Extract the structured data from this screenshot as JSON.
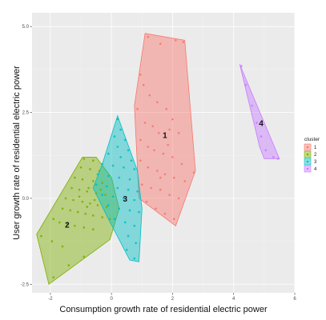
{
  "chart_data": {
    "type": "scatter",
    "xlabel": "Consumption growth rate of residential electric power",
    "ylabel": "User growth rate of residential electric power",
    "xlim": [
      -2.6,
      6.0
    ],
    "ylim": [
      -2.75,
      5.4
    ],
    "x_ticks": [
      -2,
      0,
      2,
      4,
      6
    ],
    "y_ticks": [
      -2.5,
      0.0,
      2.5,
      5.0
    ],
    "y_tick_labels": [
      "-2.5",
      "0.0",
      "2.5",
      "5.0"
    ],
    "grid": true,
    "legend": {
      "title": "cluster",
      "position": "right",
      "entries": [
        "1",
        "2",
        "3",
        "4"
      ]
    },
    "series": [
      {
        "name": "1",
        "color": "#F8766D",
        "label_point": [
          1.75,
          1.75
        ],
        "hull": [
          [
            1.1,
            4.8
          ],
          [
            2.4,
            4.6
          ],
          [
            2.75,
            0.8
          ],
          [
            2.1,
            -0.8
          ],
          [
            0.9,
            0.0
          ],
          [
            0.75,
            2.7
          ]
        ],
        "points": [
          [
            1.2,
            4.7
          ],
          [
            1.6,
            4.5
          ],
          [
            2.1,
            4.6
          ],
          [
            2.35,
            4.55
          ],
          [
            0.95,
            3.6
          ],
          [
            1.05,
            3.3
          ],
          [
            1.25,
            3.0
          ],
          [
            1.5,
            2.8
          ],
          [
            1.8,
            2.6
          ],
          [
            2.0,
            2.3
          ],
          [
            0.85,
            2.6
          ],
          [
            1.1,
            2.2
          ],
          [
            1.35,
            2.1
          ],
          [
            1.55,
            1.9
          ],
          [
            1.9,
            2.0
          ],
          [
            2.2,
            1.9
          ],
          [
            0.95,
            1.7
          ],
          [
            1.2,
            1.5
          ],
          [
            1.4,
            1.4
          ],
          [
            1.7,
            1.3
          ],
          [
            2.0,
            1.2
          ],
          [
            2.3,
            1.0
          ],
          [
            0.95,
            1.1
          ],
          [
            1.2,
            0.9
          ],
          [
            1.5,
            0.8
          ],
          [
            1.75,
            0.7
          ],
          [
            2.05,
            0.6
          ],
          [
            2.4,
            0.5
          ],
          [
            2.7,
            0.75
          ],
          [
            1.0,
            0.4
          ],
          [
            1.3,
            0.3
          ],
          [
            1.6,
            0.25
          ],
          [
            1.9,
            0.1
          ],
          [
            2.2,
            0.0
          ],
          [
            1.15,
            -0.1
          ],
          [
            1.45,
            -0.3
          ],
          [
            1.75,
            -0.45
          ],
          [
            2.05,
            -0.6
          ],
          [
            1.6,
            0.6
          ],
          [
            1.85,
            1.55
          ]
        ]
      },
      {
        "name": "2",
        "color": "#7CAE00",
        "label_point": [
          -1.45,
          -0.85
        ],
        "hull": [
          [
            -2.05,
            -2.5
          ],
          [
            -0.05,
            -1.2
          ],
          [
            0.25,
            -0.3
          ],
          [
            0.0,
            0.6
          ],
          [
            -0.5,
            1.2
          ],
          [
            -0.95,
            1.2
          ],
          [
            -2.45,
            -1.05
          ]
        ],
        "points": [
          [
            -0.9,
            1.15
          ],
          [
            -0.6,
            1.1
          ],
          [
            -1.0,
            0.9
          ],
          [
            -0.7,
            0.85
          ],
          [
            -0.4,
            0.8
          ],
          [
            -1.2,
            0.6
          ],
          [
            -0.95,
            0.55
          ],
          [
            -0.6,
            0.5
          ],
          [
            -0.3,
            0.45
          ],
          [
            -1.3,
            0.3
          ],
          [
            -1.05,
            0.25
          ],
          [
            -0.8,
            0.2
          ],
          [
            -0.5,
            0.15
          ],
          [
            -0.2,
            0.1
          ],
          [
            -1.5,
            0.0
          ],
          [
            -1.25,
            -0.05
          ],
          [
            -0.95,
            -0.1
          ],
          [
            -0.7,
            -0.15
          ],
          [
            -0.45,
            -0.2
          ],
          [
            -0.15,
            -0.25
          ],
          [
            -1.6,
            -0.3
          ],
          [
            -1.35,
            -0.35
          ],
          [
            -1.1,
            -0.4
          ],
          [
            -0.85,
            -0.45
          ],
          [
            -0.6,
            -0.5
          ],
          [
            -0.3,
            -0.55
          ],
          [
            -0.05,
            -0.6
          ],
          [
            -1.9,
            -0.6
          ],
          [
            -1.7,
            -0.7
          ],
          [
            -1.45,
            -0.75
          ],
          [
            -1.2,
            -0.8
          ],
          [
            -0.9,
            -0.85
          ],
          [
            -0.6,
            -0.9
          ],
          [
            -2.3,
            -1.1
          ],
          [
            -1.95,
            -1.25
          ],
          [
            -1.6,
            -1.4
          ],
          [
            -0.9,
            -1.7
          ],
          [
            -1.4,
            -1.95
          ],
          [
            -1.9,
            -2.3
          ],
          [
            -0.75,
            0.3
          ],
          [
            -0.55,
            -0.05
          ],
          [
            -0.35,
            0.25
          ],
          [
            -1.05,
            0.05
          ],
          [
            -0.8,
            -0.25
          ]
        ]
      },
      {
        "name": "3",
        "color": "#00BFC4",
        "label_point": [
          0.45,
          -0.1
        ],
        "hull": [
          [
            0.2,
            2.4
          ],
          [
            0.85,
            0.8
          ],
          [
            1.0,
            -0.3
          ],
          [
            0.9,
            -1.85
          ],
          [
            0.6,
            -1.8
          ],
          [
            -0.1,
            -0.6
          ],
          [
            -0.6,
            0.3
          ],
          [
            -0.3,
            1.0
          ]
        ],
        "points": [
          [
            0.2,
            2.3
          ],
          [
            0.3,
            2.0
          ],
          [
            0.1,
            1.8
          ],
          [
            0.45,
            1.7
          ],
          [
            0.2,
            1.5
          ],
          [
            0.55,
            1.4
          ],
          [
            -0.1,
            1.3
          ],
          [
            0.3,
            1.2
          ],
          [
            0.65,
            1.1
          ],
          [
            -0.3,
            1.0
          ],
          [
            0.05,
            0.95
          ],
          [
            0.4,
            0.9
          ],
          [
            0.75,
            0.85
          ],
          [
            -0.45,
            0.7
          ],
          [
            -0.1,
            0.65
          ],
          [
            0.25,
            0.6
          ],
          [
            0.6,
            0.55
          ],
          [
            -0.5,
            0.4
          ],
          [
            -0.15,
            0.35
          ],
          [
            0.2,
            0.3
          ],
          [
            0.55,
            0.25
          ],
          [
            0.85,
            0.2
          ],
          [
            -0.3,
            0.1
          ],
          [
            0.05,
            0.05
          ],
          [
            0.4,
            0.0
          ],
          [
            0.75,
            -0.05
          ],
          [
            -0.1,
            -0.2
          ],
          [
            0.25,
            -0.3
          ],
          [
            0.6,
            -0.35
          ],
          [
            0.9,
            -0.4
          ],
          [
            0.1,
            -0.6
          ],
          [
            0.45,
            -0.7
          ],
          [
            0.75,
            -0.8
          ],
          [
            0.55,
            -1.1
          ],
          [
            0.8,
            -1.3
          ],
          [
            0.75,
            -1.75
          ],
          [
            0.5,
            -1.5
          ]
        ]
      },
      {
        "name": "4",
        "color": "#C77CFF",
        "label_point": [
          4.9,
          2.1
        ],
        "hull": [
          [
            4.2,
            3.9
          ],
          [
            5.5,
            1.15
          ],
          [
            5.0,
            1.15
          ],
          [
            4.85,
            1.5
          ]
        ],
        "points": [
          [
            4.25,
            3.85
          ],
          [
            4.4,
            3.3
          ],
          [
            4.6,
            2.7
          ],
          [
            4.75,
            2.2
          ],
          [
            4.9,
            1.8
          ],
          [
            5.05,
            1.4
          ],
          [
            5.3,
            1.2
          ],
          [
            5.45,
            1.15
          ]
        ]
      }
    ]
  }
}
